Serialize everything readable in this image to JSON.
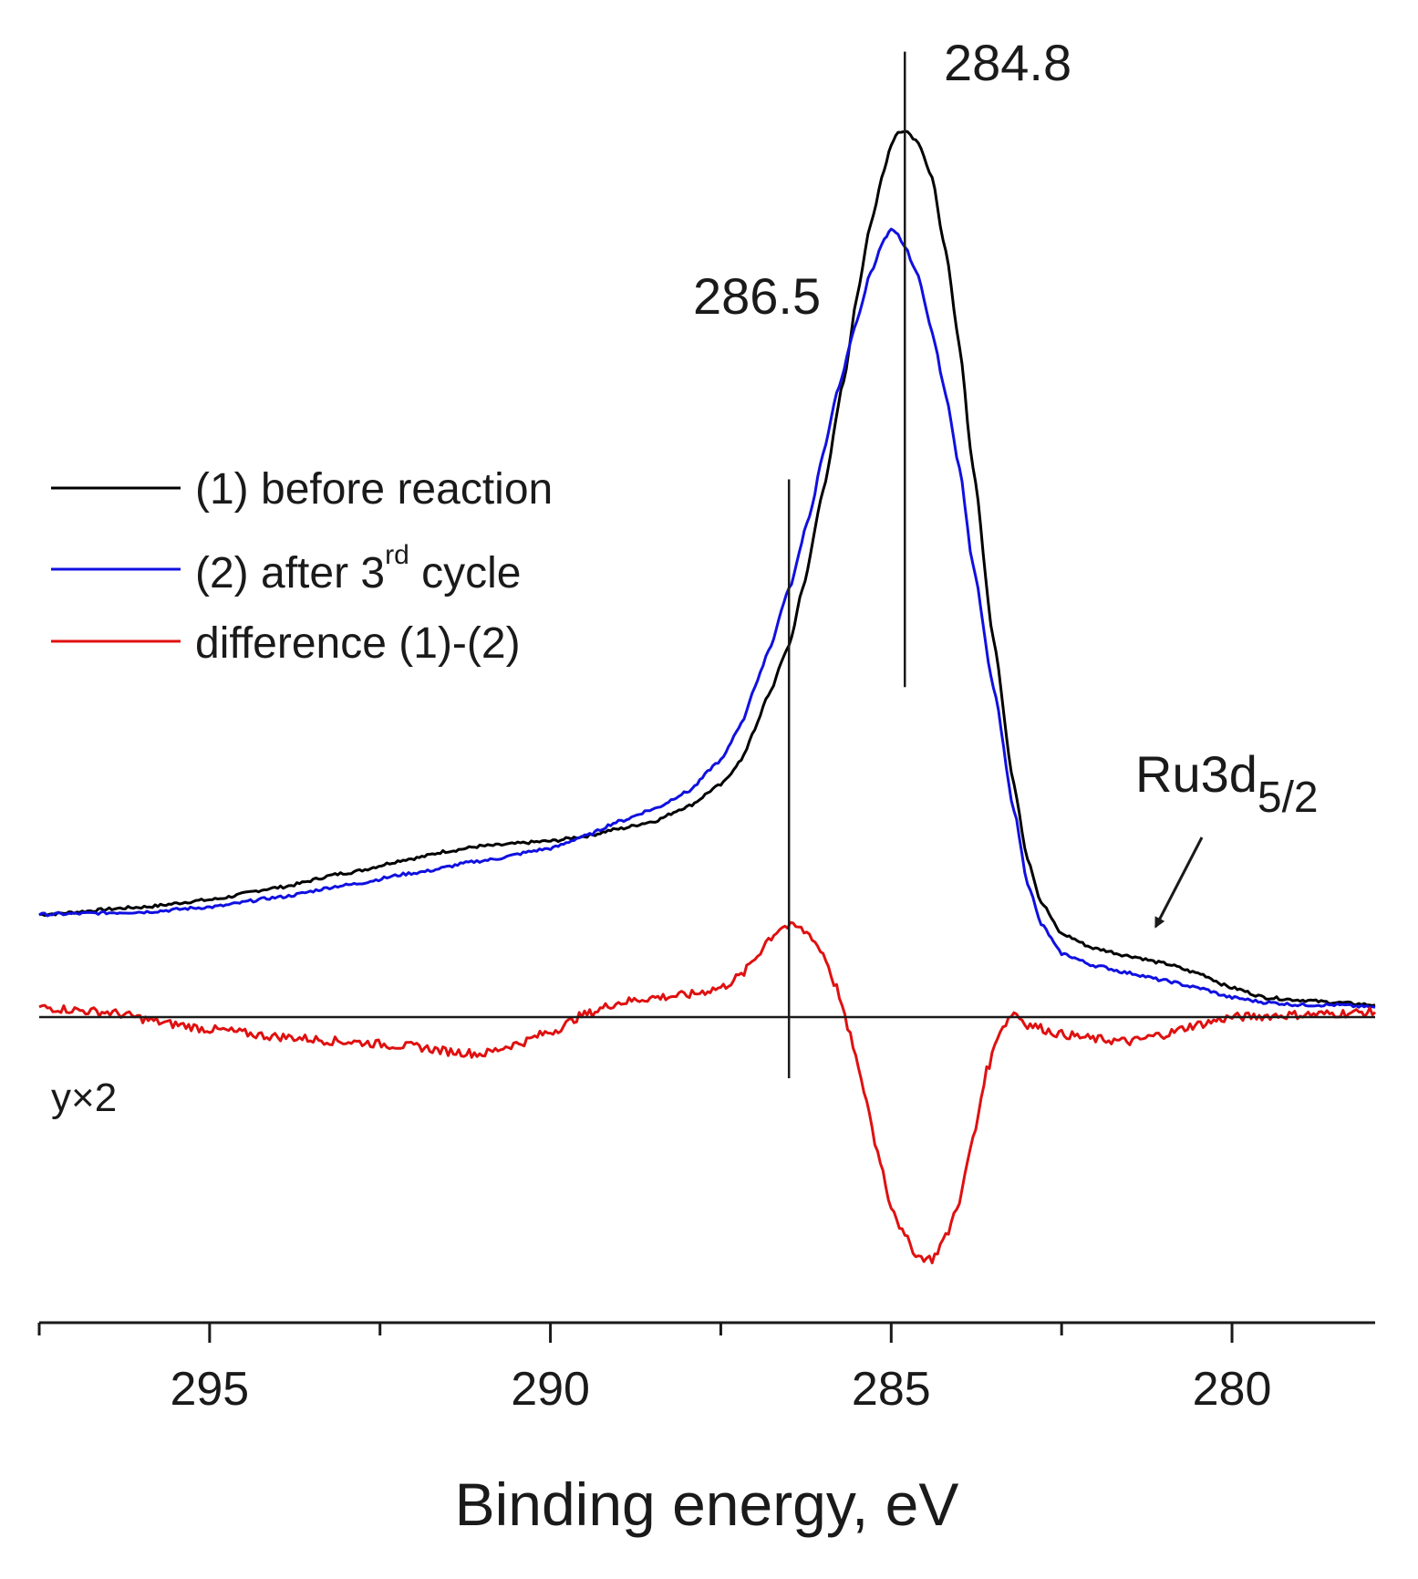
{
  "chart_data": {
    "type": "line",
    "title": "",
    "xlabel": "Binding energy, eV",
    "ylabel": "",
    "xlim": [
      297.5,
      277.9
    ],
    "x_reversed": true,
    "ylim": [
      -1.25,
      3.9
    ],
    "xticks_major": [
      295,
      290,
      285,
      280
    ],
    "xtick_labels": [
      "295",
      "290",
      "285",
      "280"
    ],
    "xticks_minor": [
      297.5,
      292.5,
      287.5,
      282.5
    ],
    "grid": false,
    "legend": {
      "placement": "upper-left",
      "entries": [
        {
          "id": "s1",
          "prefix": "(1) before reaction",
          "sup": "",
          "suffix": ""
        },
        {
          "id": "s2",
          "prefix": "(2) after 3",
          "sup": "rd",
          "suffix": " cycle"
        },
        {
          "id": "s3",
          "prefix": "difference (1)-(2)",
          "sup": "",
          "suffix": ""
        }
      ]
    },
    "series": [
      {
        "id": "s1",
        "name": "(1) before reaction",
        "color": "#000000",
        "x": [
          297.5,
          296.0,
          295.0,
          294.0,
          293.0,
          292.0,
          291.5,
          291.0,
          290.0,
          289.5,
          289.0,
          288.5,
          288.0,
          287.5,
          287.2,
          287.0,
          286.8,
          286.5,
          286.3,
          286.0,
          285.7,
          285.5,
          285.3,
          285.1,
          285.0,
          284.9,
          284.8,
          284.6,
          284.4,
          284.2,
          284.0,
          283.8,
          283.5,
          283.2,
          283.0,
          282.8,
          282.5,
          282.0,
          281.5,
          281.0,
          280.5,
          280.0,
          279.5,
          279.0,
          278.5,
          277.9
        ],
        "values": [
          0.42,
          0.45,
          0.48,
          0.53,
          0.59,
          0.65,
          0.68,
          0.7,
          0.72,
          0.74,
          0.77,
          0.8,
          0.86,
          0.95,
          1.05,
          1.18,
          1.32,
          1.52,
          1.75,
          2.15,
          2.6,
          2.95,
          3.25,
          3.47,
          3.57,
          3.62,
          3.63,
          3.58,
          3.43,
          3.13,
          2.75,
          2.25,
          1.55,
          0.95,
          0.65,
          0.47,
          0.34,
          0.28,
          0.25,
          0.22,
          0.18,
          0.12,
          0.08,
          0.07,
          0.06,
          0.05
        ]
      },
      {
        "id": "s2",
        "name": "(2) after 3rd cycle",
        "color": "#1010e0",
        "x": [
          297.5,
          296.0,
          295.0,
          294.0,
          293.0,
          292.0,
          291.0,
          290.0,
          289.5,
          289.0,
          288.5,
          288.0,
          287.5,
          287.2,
          287.0,
          286.8,
          286.5,
          286.2,
          286.0,
          285.8,
          285.5,
          285.3,
          285.1,
          285.0,
          284.9,
          284.8,
          284.6,
          284.4,
          284.2,
          284.0,
          283.8,
          283.5,
          283.2,
          283.0,
          282.8,
          282.5,
          282.0,
          281.5,
          281.0,
          280.5,
          280.0,
          279.5,
          279.0,
          278.5,
          277.9
        ],
        "values": [
          0.42,
          0.43,
          0.45,
          0.49,
          0.54,
          0.59,
          0.64,
          0.69,
          0.74,
          0.8,
          0.85,
          0.92,
          1.05,
          1.2,
          1.35,
          1.5,
          1.75,
          2.05,
          2.3,
          2.55,
          2.85,
          3.05,
          3.18,
          3.22,
          3.2,
          3.15,
          3.03,
          2.8,
          2.55,
          2.25,
          1.85,
          1.35,
          0.85,
          0.55,
          0.38,
          0.26,
          0.21,
          0.18,
          0.15,
          0.12,
          0.08,
          0.06,
          0.05,
          0.05,
          0.04
        ]
      },
      {
        "id": "s3",
        "name": "difference (1)-(2)",
        "color": "#e01010",
        "x": [
          297.5,
          296.5,
          295.5,
          295.0,
          294.0,
          293.0,
          292.0,
          291.5,
          291.0,
          290.5,
          290.0,
          289.5,
          289.0,
          288.5,
          288.0,
          287.5,
          287.2,
          287.0,
          286.8,
          286.6,
          286.4,
          286.2,
          286.0,
          285.8,
          285.6,
          285.4,
          285.2,
          285.0,
          284.8,
          284.6,
          284.4,
          284.2,
          284.0,
          283.8,
          283.6,
          283.4,
          283.2,
          283.0,
          282.5,
          282.0,
          281.5,
          281.0,
          280.5,
          280.0,
          279.0,
          277.9
        ],
        "values": [
          0.04,
          0.02,
          -0.03,
          -0.05,
          -0.08,
          -0.1,
          -0.12,
          -0.14,
          -0.15,
          -0.11,
          -0.06,
          0.01,
          0.06,
          0.08,
          0.09,
          0.12,
          0.17,
          0.24,
          0.32,
          0.37,
          0.37,
          0.34,
          0.26,
          0.12,
          -0.08,
          -0.3,
          -0.55,
          -0.77,
          -0.9,
          -0.98,
          -0.99,
          -0.9,
          -0.75,
          -0.5,
          -0.22,
          -0.05,
          0.02,
          -0.03,
          -0.07,
          -0.09,
          -0.1,
          -0.07,
          -0.03,
          0.0,
          0.01,
          0.02
        ]
      }
    ],
    "reference_lines": [
      {
        "label": "284.8",
        "x": 284.8,
        "y_from": 1.35,
        "y_to": 3.95
      },
      {
        "label": "286.5",
        "x": 286.5,
        "y_from": -0.25,
        "y_to": 2.2
      }
    ],
    "zero_line": {
      "y": 0
    },
    "annotations": {
      "peak_284": "284.8",
      "peak_286": "286.5",
      "ru_label": "Ru3d",
      "ru_subscript": "5/2",
      "ru_target": {
        "x": 281.2,
        "y": 0.34
      },
      "scale_note": "y×2"
    }
  }
}
